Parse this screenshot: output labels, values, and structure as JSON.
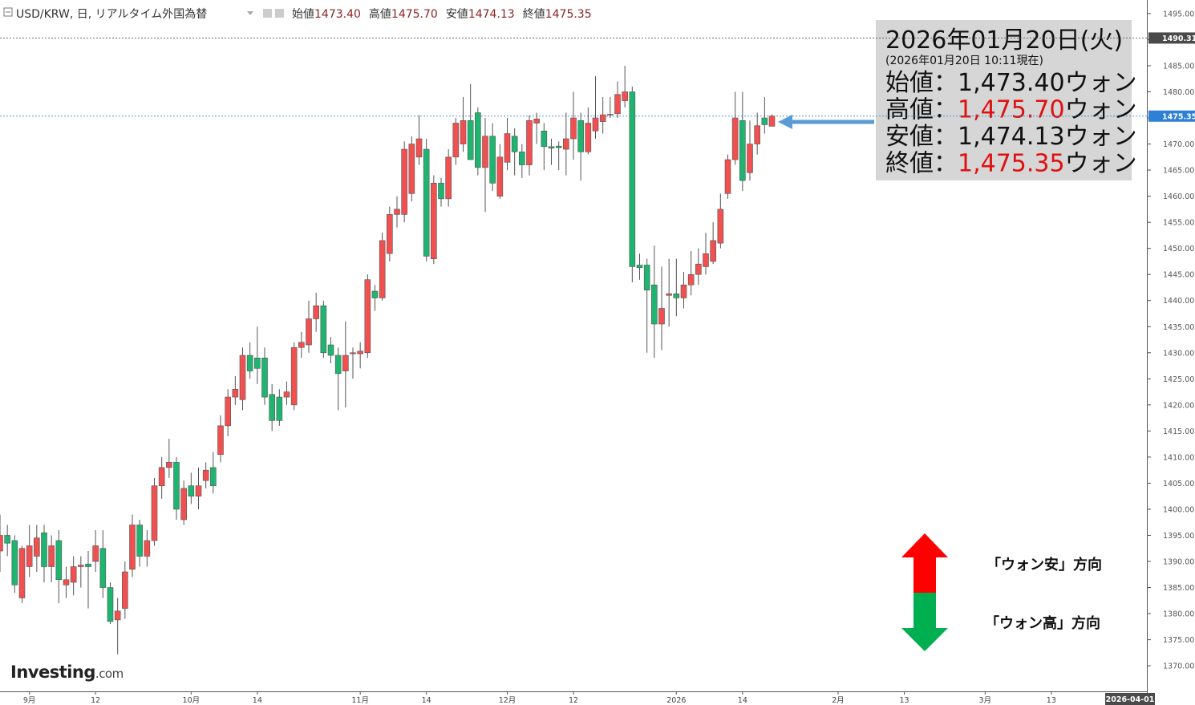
{
  "header": {
    "title": "USD/KRW, 日, リアルタイム外国為替",
    "ohlc": [
      {
        "label": "始値",
        "value": "1473.40"
      },
      {
        "label": "高値",
        "value": "1475.70"
      },
      {
        "label": "安値",
        "value": "1474.13"
      },
      {
        "label": "終値",
        "value": "1475.35"
      }
    ]
  },
  "annotation": {
    "date": "2026年01月20日(火)",
    "timestamp": "(2026年01月20日 10:11現在)",
    "rows": [
      {
        "label": "始値：",
        "value": "1,473.40",
        "unit": "ウォン",
        "value_color": "#111111"
      },
      {
        "label": "高値：",
        "value": "1,475.70",
        "unit": "ウォン",
        "value_color": "#e01010"
      },
      {
        "label": "安値：",
        "value": "1,474.13",
        "unit": "ウォン",
        "value_color": "#111111"
      },
      {
        "label": "終値：",
        "value": "1,475.35",
        "unit": "ウォン",
        "value_color": "#e01010"
      }
    ]
  },
  "direction_legend": {
    "up": "「ウォン安」方向",
    "down": "「ウォン高」方向",
    "up_color": "#ff0000",
    "down_color": "#00b050"
  },
  "logo": {
    "name": "Investing",
    "suffix": ".com"
  },
  "chart_data": {
    "type": "candlestick",
    "up_color": "#f05050",
    "down_color": "#1fb46f",
    "grid": false,
    "xlim": [
      -4,
      152
    ],
    "ylim": [
      1365.1,
      1497.6
    ],
    "xticks": [
      {
        "value": 0,
        "label": "9月"
      },
      {
        "value": 9,
        "label": "12"
      },
      {
        "value": 22,
        "label": "10月"
      },
      {
        "value": 31,
        "label": "14"
      },
      {
        "value": 45,
        "label": "11月"
      },
      {
        "value": 54,
        "label": "14"
      },
      {
        "value": 65,
        "label": "12月"
      },
      {
        "value": 74,
        "label": "12"
      },
      {
        "value": 88,
        "label": "2026"
      },
      {
        "value": 97,
        "label": "14"
      },
      {
        "value": 110,
        "label": "2月"
      },
      {
        "value": 119,
        "label": "13"
      },
      {
        "value": 130,
        "label": "3月"
      },
      {
        "value": 139,
        "label": "13"
      }
    ],
    "x_cursor": {
      "value": 152,
      "label": "2026-04-01"
    },
    "yticks": [
      {
        "value": 1370,
        "label": "1370.00"
      },
      {
        "value": 1375,
        "label": "1375.00"
      },
      {
        "value": 1380,
        "label": "1380.00"
      },
      {
        "value": 1385,
        "label": "1385.00"
      },
      {
        "value": 1390,
        "label": "1390.00"
      },
      {
        "value": 1395,
        "label": "1395.00"
      },
      {
        "value": 1400,
        "label": "1400.00"
      },
      {
        "value": 1405,
        "label": "1405.00"
      },
      {
        "value": 1410,
        "label": "1410.00"
      },
      {
        "value": 1415,
        "label": "1415.00"
      },
      {
        "value": 1420,
        "label": "1420.00"
      },
      {
        "value": 1425,
        "label": "1425.00"
      },
      {
        "value": 1430,
        "label": "1430.00"
      },
      {
        "value": 1435,
        "label": "1435.00"
      },
      {
        "value": 1440,
        "label": "1440.00"
      },
      {
        "value": 1445,
        "label": "1445.00"
      },
      {
        "value": 1450,
        "label": "1450.00"
      },
      {
        "value": 1455,
        "label": "1455.00"
      },
      {
        "value": 1460,
        "label": "1460.00"
      },
      {
        "value": 1465,
        "label": "1465.00"
      },
      {
        "value": 1470,
        "label": "1470.00"
      },
      {
        "value": 1475,
        "label": "1475.00"
      },
      {
        "value": 1480,
        "label": "1480.00"
      },
      {
        "value": 1485,
        "label": "1485.00"
      },
      {
        "value": 1490,
        "label": "1490.00"
      },
      {
        "value": 1495,
        "label": "1495.00"
      }
    ],
    "price_lines": [
      {
        "value": 1490.31,
        "label": "1490.31",
        "color": "#4a4a4a"
      },
      {
        "value": 1475.35,
        "label": "1475.35",
        "color": "#2e7fd6"
      }
    ],
    "x": [
      -4,
      -3,
      -2,
      -1,
      0,
      1,
      2,
      3,
      4,
      5,
      6,
      7,
      8,
      9,
      10,
      11,
      12,
      13,
      14,
      15,
      16,
      17,
      18,
      19,
      20,
      21,
      22,
      23,
      24,
      25,
      26,
      27,
      28,
      29,
      30,
      31,
      32,
      33,
      34,
      35,
      36,
      37,
      38,
      39,
      40,
      41,
      42,
      43,
      44,
      45,
      46,
      47,
      48,
      49,
      50,
      51,
      52,
      53,
      54,
      55,
      56,
      57,
      58,
      59,
      60,
      61,
      62,
      63,
      64,
      65,
      66,
      67,
      68,
      69,
      70,
      71,
      72,
      73,
      74,
      75,
      76,
      77,
      78,
      79,
      80,
      81,
      82,
      83,
      84,
      85,
      86,
      87,
      88,
      89,
      90,
      91,
      92,
      93,
      94,
      95,
      96,
      97,
      98,
      99,
      100,
      101
    ],
    "open": [
      1392,
      1395,
      1394,
      1383,
      1389,
      1391,
      1395.5,
      1389,
      1394,
      1385.5,
      1386,
      1389,
      1389.5,
      1390,
      1392.5,
      1385,
      1378.8,
      1381,
      1388.5,
      1397,
      1391,
      1394,
      1404.5,
      1408,
      1409,
      1398,
      1404.5,
      1402.5,
      1405.5,
      1408,
      1410.5,
      1416,
      1421.5,
      1421,
      1429.5,
      1429,
      1429,
      1422,
      1421.5,
      1421.5,
      1420,
      1431,
      1431.5,
      1436.5,
      1439,
      1431.5,
      1429.5,
      1426.5,
      1429.8,
      1429.8,
      1430,
      1441.8,
      1440.5,
      1449,
      1456.5,
      1456.5,
      1460.5,
      1467.5,
      1469,
      1448,
      1462.5,
      1459.5,
      1467.5,
      1470,
      1474.5,
      1476,
      1465.5,
      1471.5,
      1460,
      1466.5,
      1471.5,
      1468.5,
      1466,
      1474,
      1472.5,
      1469.5,
      1469.6,
      1469,
      1471,
      1474.5,
      1468.5,
      1472.5,
      1474.3,
      1475.6,
      1475.8,
      1478.3,
      1480,
      1446.8,
      1446.8,
      1443,
      1435.5,
      1441,
      1441.3,
      1440.5,
      1443,
      1445,
      1446.5,
      1447.5,
      1451,
      1460.5,
      1467,
      1474.5,
      1464.5,
      1470,
      1475,
      1473.4
    ],
    "high": [
      1399,
      1397,
      1395,
      1393,
      1397,
      1397,
      1397,
      1395,
      1396,
      1389,
      1391,
      1391,
      1392,
      1396,
      1396,
      1386,
      1383,
      1390,
      1399,
      1398,
      1396,
      1406,
      1410,
      1413.5,
      1410,
      1405.5,
      1407,
      1408,
      1409,
      1411,
      1418,
      1423,
      1425.5,
      1431,
      1432,
      1435,
      1431,
      1424,
      1423,
      1424.5,
      1432,
      1434,
      1440,
      1441.5,
      1440,
      1433,
      1431,
      1436,
      1431,
      1432,
      1445,
      1443,
      1453,
      1458,
      1460,
      1470.5,
      1471.5,
      1475.5,
      1471,
      1464,
      1463.5,
      1469,
      1475,
      1479,
      1481.5,
      1477,
      1475,
      1474,
      1470,
      1475,
      1473,
      1470,
      1475.5,
      1476,
      1474,
      1471,
      1470.5,
      1476,
      1480,
      1476,
      1477,
      1483,
      1479,
      1479,
      1482,
      1485,
      1481,
      1449,
      1448,
      1450.5,
      1446.5,
      1448,
      1448,
      1445.5,
      1449.5,
      1450,
      1453,
      1455,
      1460.5,
      1468,
      1480,
      1480,
      1474.5,
      1476,
      1479,
      1475.7
    ],
    "low": [
      1388,
      1391,
      1384,
      1382,
      1387,
      1388,
      1386,
      1386,
      1382,
      1383,
      1383.5,
      1385,
      1381,
      1388,
      1383,
      1378,
      1372.2,
      1379,
      1387,
      1389,
      1389,
      1393,
      1402,
      1406,
      1398,
      1397,
      1401,
      1400,
      1404,
      1403,
      1409,
      1414,
      1420,
      1419,
      1425,
      1424,
      1420,
      1415,
      1416,
      1420,
      1419,
      1429,
      1430,
      1434,
      1429,
      1428,
      1419,
      1419.5,
      1425,
      1427,
      1429,
      1438,
      1440,
      1447.5,
      1454,
      1455,
      1459,
      1466,
      1447.5,
      1447,
      1458,
      1458,
      1466,
      1468.5,
      1467,
      1464,
      1457,
      1461,
      1459.5,
      1465,
      1464,
      1463.5,
      1464,
      1470,
      1465,
      1466,
      1465,
      1464,
      1467,
      1463,
      1468,
      1471,
      1472,
      1475,
      1475,
      1477,
      1443.5,
      1444,
      1430,
      1429,
      1430.5,
      1435,
      1437,
      1438.5,
      1441,
      1443,
      1445,
      1447,
      1450,
      1459.5,
      1466,
      1461,
      1463,
      1468,
      1472,
      1474.13
    ],
    "close": [
      1395,
      1393.5,
      1385.5,
      1392.5,
      1393,
      1394.5,
      1389,
      1393,
      1386.5,
      1386.5,
      1389,
      1389.3,
      1389,
      1393,
      1385,
      1378.5,
      1380.5,
      1388,
      1397,
      1391,
      1394,
      1404.5,
      1408,
      1409,
      1400,
      1404,
      1402.5,
      1404.5,
      1407.5,
      1404.5,
      1416,
      1421.5,
      1423,
      1429.5,
      1426.5,
      1427,
      1421.5,
      1417,
      1417,
      1422.5,
      1431,
      1432,
      1436.5,
      1439,
      1430,
      1429.5,
      1426,
      1429.5,
      1430,
      1430.3,
      1444,
      1440.5,
      1451.5,
      1456.5,
      1457.5,
      1469,
      1470,
      1471,
      1448.5,
      1462.5,
      1459.5,
      1467.5,
      1474,
      1474.5,
      1467,
      1465.5,
      1471.5,
      1462.5,
      1467.5,
      1472,
      1468.5,
      1466,
      1474.5,
      1474.8,
      1469.5,
      1469.2,
      1469.3,
      1471,
      1475,
      1468.5,
      1474,
      1475,
      1475.6,
      1475.7,
      1479.5,
      1480,
      1446.5,
      1446.3,
      1442,
      1435.5,
      1438.5,
      1441.3,
      1440.5,
      1443,
      1445,
      1447,
      1449,
      1451.5,
      1457.5,
      1467,
      1475,
      1463,
      1470,
      1473.5,
      1473.7,
      1475.35
    ]
  }
}
